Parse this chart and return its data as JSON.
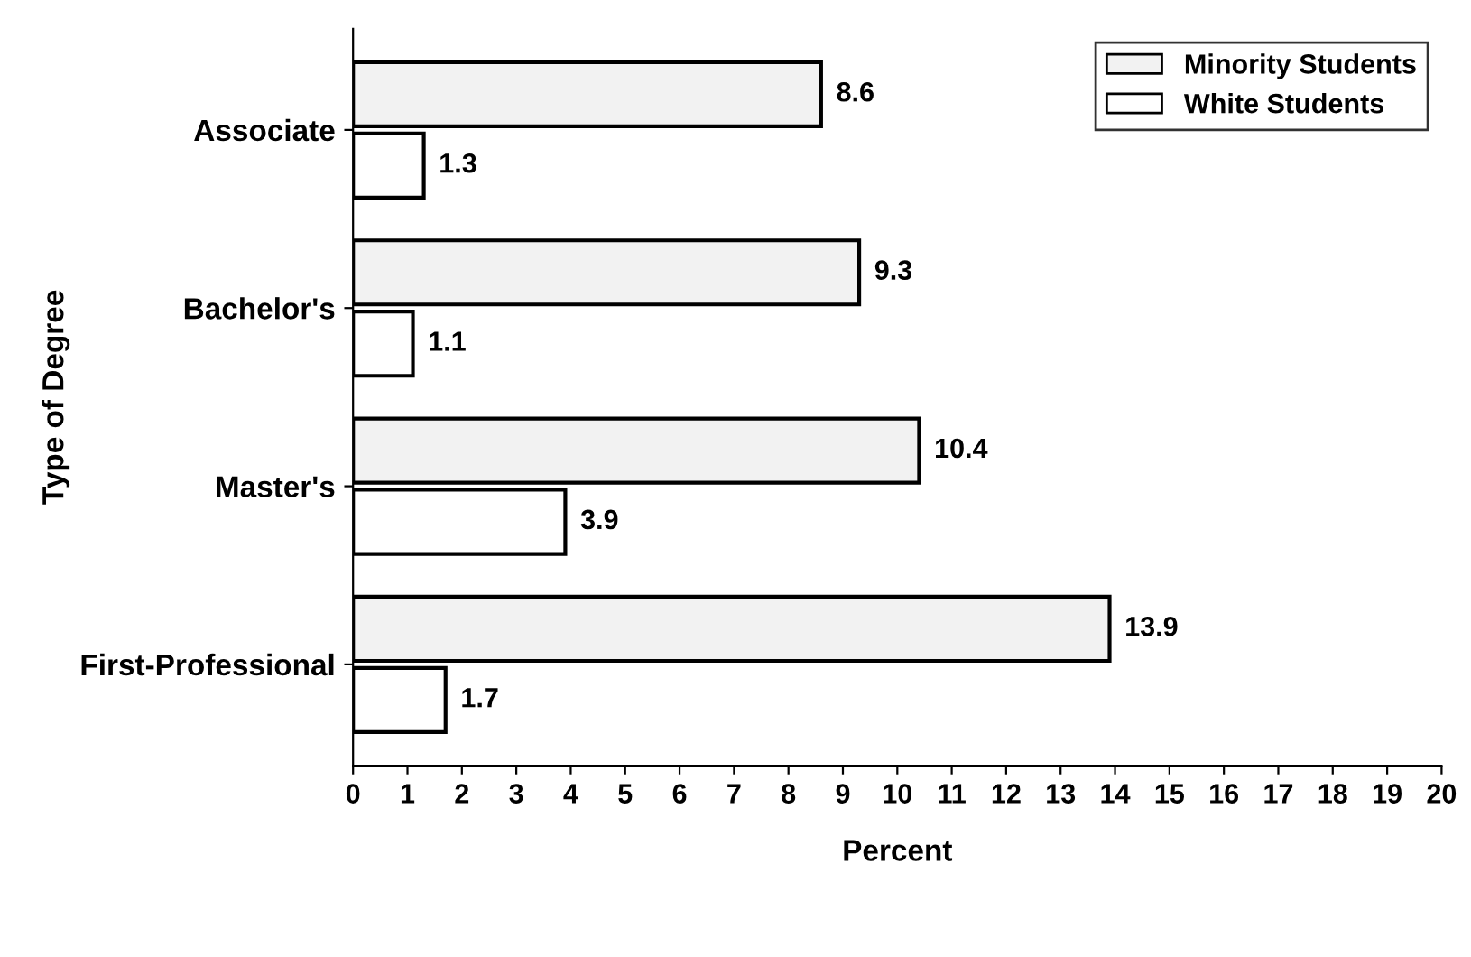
{
  "chart_data": {
    "type": "bar",
    "orientation": "horizontal",
    "xlabel": "Percent",
    "ylabel": "Type of Degree",
    "categories": [
      "Associate",
      "Bachelor's",
      "Master's",
      "First-Professional"
    ],
    "series": [
      {
        "name": "Minority Students",
        "color": "#f2f2f2",
        "values": [
          8.6,
          9.3,
          10.4,
          13.9
        ]
      },
      {
        "name": "White Students",
        "color": "#ffffff",
        "values": [
          1.3,
          1.1,
          3.9,
          1.7
        ]
      }
    ],
    "xlim": [
      0,
      20
    ],
    "xticks": [
      0,
      1,
      2,
      3,
      4,
      5,
      6,
      7,
      8,
      9,
      10,
      11,
      12,
      13,
      14,
      15,
      16,
      17,
      18,
      19,
      20
    ],
    "data_labels": true,
    "legend": "top right",
    "grid": false
  }
}
